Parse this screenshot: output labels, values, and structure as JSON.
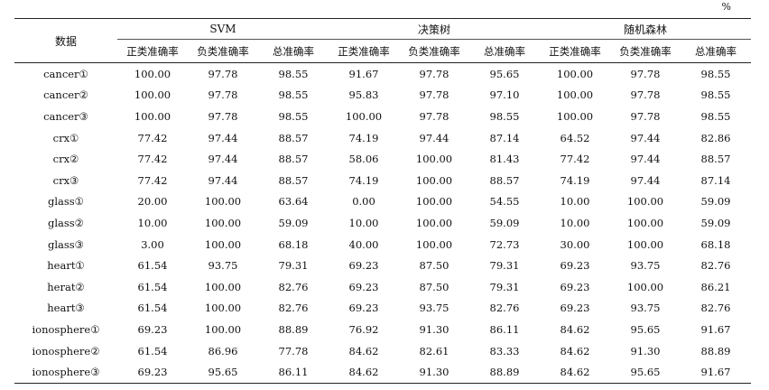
{
  "unit": "%",
  "header": {
    "data_label": "数据",
    "groups": [
      "SVM",
      "决策树",
      "随机森林"
    ],
    "sub": [
      "正类准确率",
      "负类准确率",
      "总准确率"
    ]
  },
  "rows": [
    {
      "name": "cancer①",
      "v": [
        "100.00",
        "97.78",
        "98.55",
        "91.67",
        "97.78",
        "95.65",
        "100.00",
        "97.78",
        "98.55"
      ]
    },
    {
      "name": "cancer②",
      "v": [
        "100.00",
        "97.78",
        "98.55",
        "95.83",
        "97.78",
        "97.10",
        "100.00",
        "97.78",
        "98.55"
      ]
    },
    {
      "name": "cancer③",
      "v": [
        "100.00",
        "97.78",
        "98.55",
        "100.00",
        "97.78",
        "98.55",
        "100.00",
        "97.78",
        "98.55"
      ]
    },
    {
      "name": "crx①",
      "v": [
        "77.42",
        "97.44",
        "88.57",
        "74.19",
        "97.44",
        "87.14",
        "64.52",
        "97.44",
        "82.86"
      ]
    },
    {
      "name": "crx②",
      "v": [
        "77.42",
        "97.44",
        "88.57",
        "58.06",
        "100.00",
        "81.43",
        "77.42",
        "97.44",
        "88.57"
      ]
    },
    {
      "name": "crx③",
      "v": [
        "77.42",
        "97.44",
        "88.57",
        "74.19",
        "100.00",
        "88.57",
        "74.19",
        "97.44",
        "87.14"
      ]
    },
    {
      "name": "glass①",
      "v": [
        "20.00",
        "100.00",
        "63.64",
        "0.00",
        "100.00",
        "54.55",
        "10.00",
        "100.00",
        "59.09"
      ]
    },
    {
      "name": "glass②",
      "v": [
        "10.00",
        "100.00",
        "59.09",
        "10.00",
        "100.00",
        "59.09",
        "10.00",
        "100.00",
        "59.09"
      ]
    },
    {
      "name": "glass③",
      "v": [
        "3.00",
        "100.00",
        "68.18",
        "40.00",
        "100.00",
        "72.73",
        "30.00",
        "100.00",
        "68.18"
      ]
    },
    {
      "name": "heart①",
      "v": [
        "61.54",
        "93.75",
        "79.31",
        "69.23",
        "87.50",
        "79.31",
        "69.23",
        "93.75",
        "82.76"
      ]
    },
    {
      "name": "herat②",
      "v": [
        "61.54",
        "100.00",
        "82.76",
        "69.23",
        "87.50",
        "79.31",
        "69.23",
        "100.00",
        "86.21"
      ]
    },
    {
      "name": "heart③",
      "v": [
        "61.54",
        "100.00",
        "82.76",
        "69.23",
        "93.75",
        "82.76",
        "69.23",
        "93.75",
        "82.76"
      ]
    },
    {
      "name": "ionosphere①",
      "v": [
        "69.23",
        "100.00",
        "88.89",
        "76.92",
        "91.30",
        "86.11",
        "84.62",
        "95.65",
        "91.67"
      ]
    },
    {
      "name": "ionosphere②",
      "v": [
        "61.54",
        "86.96",
        "77.78",
        "84.62",
        "82.61",
        "83.33",
        "84.62",
        "91.30",
        "88.89"
      ]
    },
    {
      "name": "ionosphere③",
      "v": [
        "69.23",
        "95.65",
        "86.11",
        "84.62",
        "91.30",
        "88.89",
        "84.62",
        "95.65",
        "91.67"
      ]
    }
  ]
}
